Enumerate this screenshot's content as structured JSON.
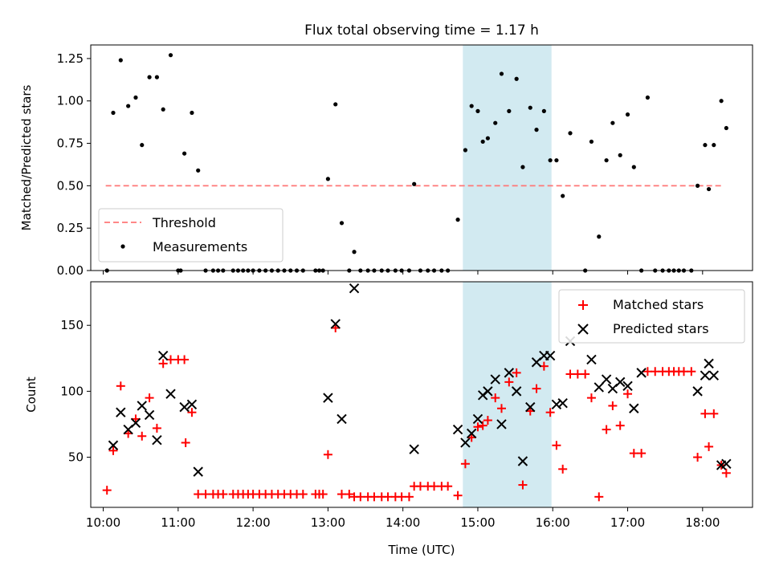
{
  "figure": {
    "title": "Flux total observing time = 1.17 h",
    "xlabel": "Time (UTC)"
  },
  "chart_data": [
    {
      "type": "scatter",
      "panel": "top",
      "ylabel": "Matched/Predicted stars",
      "xlim": [
        "09:50",
        "18:40"
      ],
      "ylim": [
        0,
        1.33
      ],
      "x_ticks": [
        "10:00",
        "11:00",
        "12:00",
        "13:00",
        "14:00",
        "15:00",
        "16:00",
        "17:00",
        "18:00"
      ],
      "y_ticks": [
        "0.00",
        "0.25",
        "0.50",
        "0.75",
        "1.00",
        "1.25"
      ],
      "shaded_interval": [
        "14:48",
        "15:59"
      ],
      "shade_color": "#add8e6",
      "grid": false,
      "legend_position": "lower-left",
      "legend": [
        "Threshold",
        "Measurements"
      ],
      "threshold": {
        "name": "Threshold",
        "y": 0.5,
        "x_range": [
          "10:02",
          "18:15"
        ],
        "color": "#ff7777",
        "style": "dashed"
      },
      "series": [
        {
          "name": "Measurements",
          "color": "#000000",
          "marker": "dot",
          "points": [
            [
              "10:03",
              0.0
            ],
            [
              "10:08",
              0.93
            ],
            [
              "10:14",
              1.24
            ],
            [
              "10:20",
              0.97
            ],
            [
              "10:26",
              1.02
            ],
            [
              "10:31",
              0.74
            ],
            [
              "10:37",
              1.14
            ],
            [
              "10:43",
              1.14
            ],
            [
              "10:48",
              0.95
            ],
            [
              "10:54",
              1.27
            ],
            [
              "11:00",
              0.0
            ],
            [
              "11:02",
              0.0
            ],
            [
              "11:05",
              0.69
            ],
            [
              "11:11",
              0.93
            ],
            [
              "11:16",
              0.59
            ],
            [
              "11:22",
              0.0
            ],
            [
              "11:28",
              0.0
            ],
            [
              "11:32",
              0.0
            ],
            [
              "11:36",
              0.0
            ],
            [
              "11:44",
              0.0
            ],
            [
              "11:48",
              0.0
            ],
            [
              "11:52",
              0.0
            ],
            [
              "11:56",
              0.0
            ],
            [
              "12:00",
              0.0
            ],
            [
              "12:05",
              0.0
            ],
            [
              "12:10",
              0.0
            ],
            [
              "12:15",
              0.0
            ],
            [
              "12:20",
              0.0
            ],
            [
              "12:25",
              0.0
            ],
            [
              "12:30",
              0.0
            ],
            [
              "12:35",
              0.0
            ],
            [
              "12:40",
              0.0
            ],
            [
              "12:50",
              0.0
            ],
            [
              "12:53",
              0.0
            ],
            [
              "12:56",
              0.0
            ],
            [
              "13:00",
              0.54
            ],
            [
              "13:06",
              0.98
            ],
            [
              "13:11",
              0.28
            ],
            [
              "13:17",
              0.0
            ],
            [
              "13:21",
              0.11
            ],
            [
              "13:26",
              0.0
            ],
            [
              "13:32",
              0.0
            ],
            [
              "13:37",
              0.0
            ],
            [
              "13:43",
              0.0
            ],
            [
              "13:48",
              0.0
            ],
            [
              "13:54",
              0.0
            ],
            [
              "13:59",
              0.0
            ],
            [
              "14:05",
              0.0
            ],
            [
              "14:09",
              0.51
            ],
            [
              "14:14",
              0.0
            ],
            [
              "14:20",
              0.0
            ],
            [
              "14:25",
              0.0
            ],
            [
              "14:31",
              0.0
            ],
            [
              "14:36",
              0.0
            ],
            [
              "14:44",
              0.3
            ],
            [
              "14:50",
              0.71
            ],
            [
              "14:55",
              0.97
            ],
            [
              "15:00",
              0.94
            ],
            [
              "15:04",
              0.76
            ],
            [
              "15:08",
              0.78
            ],
            [
              "15:14",
              0.87
            ],
            [
              "15:19",
              1.16
            ],
            [
              "15:25",
              0.94
            ],
            [
              "15:31",
              1.13
            ],
            [
              "15:36",
              0.61
            ],
            [
              "15:42",
              0.96
            ],
            [
              "15:47",
              0.83
            ],
            [
              "15:53",
              0.94
            ],
            [
              "15:58",
              0.65
            ],
            [
              "16:03",
              0.65
            ],
            [
              "16:08",
              0.44
            ],
            [
              "16:14",
              0.81
            ],
            [
              "16:26",
              0.0
            ],
            [
              "16:31",
              0.76
            ],
            [
              "16:37",
              0.2
            ],
            [
              "16:43",
              0.65
            ],
            [
              "16:48",
              0.87
            ],
            [
              "16:54",
              0.68
            ],
            [
              "17:00",
              0.92
            ],
            [
              "17:05",
              0.61
            ],
            [
              "17:11",
              0.0
            ],
            [
              "17:16",
              1.02
            ],
            [
              "17:22",
              0.0
            ],
            [
              "17:28",
              0.0
            ],
            [
              "17:33",
              0.0
            ],
            [
              "17:37",
              0.0
            ],
            [
              "17:41",
              0.0
            ],
            [
              "17:45",
              0.0
            ],
            [
              "17:51",
              0.0
            ],
            [
              "17:56",
              0.5
            ],
            [
              "18:02",
              0.74
            ],
            [
              "18:05",
              0.48
            ],
            [
              "18:09",
              0.74
            ],
            [
              "18:15",
              1.0
            ],
            [
              "18:19",
              0.84
            ]
          ]
        }
      ]
    },
    {
      "type": "scatter",
      "panel": "bottom",
      "ylabel": "Count",
      "xlabel": "Time (UTC)",
      "xlim": [
        "09:50",
        "18:40"
      ],
      "ylim": [
        12,
        183
      ],
      "x_ticks": [
        "10:00",
        "11:00",
        "12:00",
        "13:00",
        "14:00",
        "15:00",
        "16:00",
        "17:00",
        "18:00"
      ],
      "y_ticks": [
        "50",
        "100",
        "150"
      ],
      "shaded_interval": [
        "14:48",
        "15:59"
      ],
      "shade_color": "#add8e6",
      "grid": false,
      "legend_position": "top-right",
      "legend": [
        "Matched stars",
        "Predicted stars"
      ],
      "series": [
        {
          "name": "Matched stars",
          "color": "#ff0000",
          "marker": "plus",
          "points": [
            [
              "10:03",
              25
            ],
            [
              "10:08",
              55
            ],
            [
              "10:14",
              104
            ],
            [
              "10:20",
              68
            ],
            [
              "10:26",
              79
            ],
            [
              "10:31",
              66
            ],
            [
              "10:37",
              95
            ],
            [
              "10:43",
              72
            ],
            [
              "10:48",
              121
            ],
            [
              "10:54",
              124
            ],
            [
              "11:00",
              124
            ],
            [
              "11:05",
              124
            ],
            [
              "11:06",
              61
            ],
            [
              "11:11",
              84
            ],
            [
              "11:16",
              22
            ],
            [
              "11:22",
              22
            ],
            [
              "11:28",
              22
            ],
            [
              "11:32",
              22
            ],
            [
              "11:36",
              22
            ],
            [
              "11:44",
              22
            ],
            [
              "11:48",
              22
            ],
            [
              "11:52",
              22
            ],
            [
              "11:56",
              22
            ],
            [
              "12:00",
              22
            ],
            [
              "12:05",
              22
            ],
            [
              "12:10",
              22
            ],
            [
              "12:15",
              22
            ],
            [
              "12:20",
              22
            ],
            [
              "12:25",
              22
            ],
            [
              "12:30",
              22
            ],
            [
              "12:35",
              22
            ],
            [
              "12:40",
              22
            ],
            [
              "12:50",
              22
            ],
            [
              "12:53",
              22
            ],
            [
              "12:56",
              22
            ],
            [
              "13:00",
              52
            ],
            [
              "13:06",
              148
            ],
            [
              "13:11",
              22
            ],
            [
              "13:17",
              22
            ],
            [
              "13:21",
              20
            ],
            [
              "13:26",
              20
            ],
            [
              "13:32",
              20
            ],
            [
              "13:37",
              20
            ],
            [
              "13:43",
              20
            ],
            [
              "13:48",
              20
            ],
            [
              "13:54",
              20
            ],
            [
              "13:59",
              20
            ],
            [
              "14:05",
              20
            ],
            [
              "14:09",
              28
            ],
            [
              "14:14",
              28
            ],
            [
              "14:20",
              28
            ],
            [
              "14:25",
              28
            ],
            [
              "14:31",
              28
            ],
            [
              "14:36",
              28
            ],
            [
              "14:44",
              21
            ],
            [
              "14:50",
              45
            ],
            [
              "14:55",
              65
            ],
            [
              "15:00",
              73
            ],
            [
              "15:04",
              74
            ],
            [
              "15:08",
              78
            ],
            [
              "15:14",
              95
            ],
            [
              "15:19",
              87
            ],
            [
              "15:25",
              107
            ],
            [
              "15:31",
              114
            ],
            [
              "15:36",
              29
            ],
            [
              "15:42",
              85
            ],
            [
              "15:47",
              102
            ],
            [
              "15:53",
              119
            ],
            [
              "15:58",
              84
            ],
            [
              "16:03",
              59
            ],
            [
              "16:08",
              41
            ],
            [
              "16:14",
              113
            ],
            [
              "16:20",
              113
            ],
            [
              "16:26",
              113
            ],
            [
              "16:31",
              95
            ],
            [
              "16:37",
              20
            ],
            [
              "16:43",
              71
            ],
            [
              "16:48",
              89
            ],
            [
              "16:54",
              74
            ],
            [
              "17:00",
              98
            ],
            [
              "17:05",
              53
            ],
            [
              "17:11",
              53
            ],
            [
              "17:16",
              115
            ],
            [
              "17:22",
              115
            ],
            [
              "17:28",
              115
            ],
            [
              "17:33",
              115
            ],
            [
              "17:37",
              115
            ],
            [
              "17:41",
              115
            ],
            [
              "17:45",
              115
            ],
            [
              "17:51",
              115
            ],
            [
              "17:56",
              50
            ],
            [
              "18:02",
              83
            ],
            [
              "18:05",
              58
            ],
            [
              "18:09",
              83
            ],
            [
              "18:15",
              44
            ],
            [
              "18:19",
              38
            ]
          ]
        },
        {
          "name": "Predicted stars",
          "color": "#000000",
          "marker": "x",
          "points": [
            [
              "10:08",
              59
            ],
            [
              "10:14",
              84
            ],
            [
              "10:20",
              71
            ],
            [
              "10:26",
              76
            ],
            [
              "10:31",
              89
            ],
            [
              "10:37",
              82
            ],
            [
              "10:43",
              63
            ],
            [
              "10:48",
              127
            ],
            [
              "10:54",
              98
            ],
            [
              "11:05",
              88
            ],
            [
              "11:11",
              90
            ],
            [
              "11:16",
              39
            ],
            [
              "13:00",
              95
            ],
            [
              "13:06",
              151
            ],
            [
              "13:11",
              79
            ],
            [
              "13:21",
              178
            ],
            [
              "14:09",
              56
            ],
            [
              "14:44",
              71
            ],
            [
              "14:50",
              61
            ],
            [
              "14:55",
              68
            ],
            [
              "15:00",
              79
            ],
            [
              "15:04",
              97
            ],
            [
              "15:08",
              100
            ],
            [
              "15:14",
              109
            ],
            [
              "15:19",
              75
            ],
            [
              "15:25",
              114
            ],
            [
              "15:31",
              100
            ],
            [
              "15:36",
              47
            ],
            [
              "15:42",
              88
            ],
            [
              "15:47",
              122
            ],
            [
              "15:53",
              127
            ],
            [
              "15:58",
              127
            ],
            [
              "16:03",
              90
            ],
            [
              "16:08",
              91
            ],
            [
              "16:14",
              138
            ],
            [
              "16:31",
              124
            ],
            [
              "16:37",
              103
            ],
            [
              "16:43",
              109
            ],
            [
              "16:48",
              102
            ],
            [
              "16:54",
              107
            ],
            [
              "17:00",
              104
            ],
            [
              "17:05",
              87
            ],
            [
              "17:11",
              114
            ],
            [
              "17:56",
              100
            ],
            [
              "18:02",
              112
            ],
            [
              "18:05",
              121
            ],
            [
              "18:09",
              112
            ],
            [
              "18:15",
              44
            ],
            [
              "18:19",
              45
            ]
          ]
        }
      ]
    }
  ]
}
